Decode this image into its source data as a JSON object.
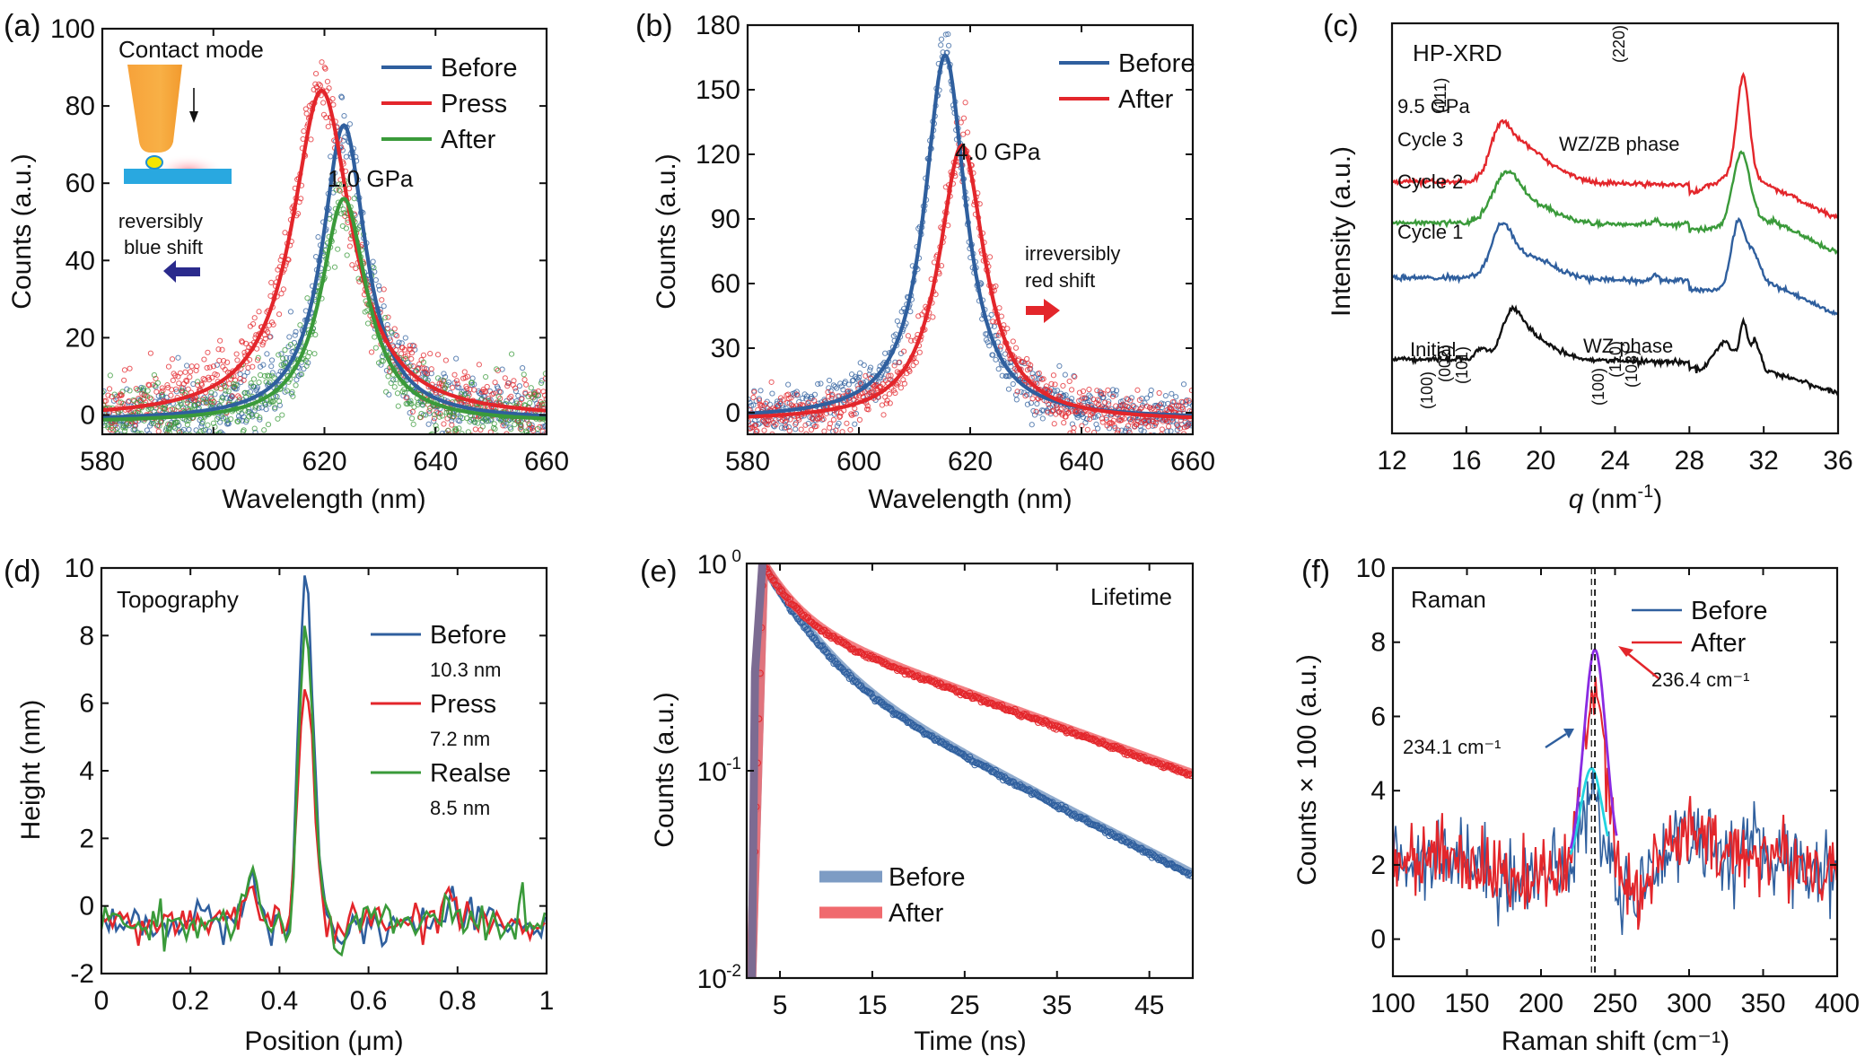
{
  "figure": {
    "panels": [
      "(a)",
      "(b)",
      "(c)",
      "(d)",
      "(e)",
      "(f)"
    ]
  },
  "chart_data": [
    {
      "id": "a",
      "panel_label": "(a)",
      "type": "scatter",
      "title": "",
      "xlabel": "Wavelength (nm)",
      "ylabel": "Counts (a.u.)",
      "xlim": [
        580,
        660
      ],
      "ylim": [
        -5,
        100
      ],
      "xticks": [
        580,
        600,
        620,
        640,
        660
      ],
      "yticks": [
        0,
        20,
        40,
        60,
        80,
        100
      ],
      "legend_position": "top-right",
      "annotations": {
        "inset_title": "Contact mode",
        "shift_text_1": "reversibly",
        "shift_text_2": "blue shift",
        "pressure": "1.0 GPa",
        "arrow_direction": "left",
        "arrow_color": "#2a2a8c"
      },
      "series": [
        {
          "name": "Before",
          "color": "#2f5f9e",
          "fit": "lorentzian",
          "center": 623.5,
          "peak": 75,
          "fwhm": 9.5,
          "baseline": -1.5
        },
        {
          "name": "Press",
          "color": "#e3262b",
          "fit": "lorentzian",
          "center": 619.5,
          "peak": 84,
          "fwhm": 13,
          "baseline": -1.0
        },
        {
          "name": "After",
          "color": "#3a9a3a",
          "fit": "lorentzian",
          "center": 623.5,
          "peak": 56,
          "fwhm": 10,
          "baseline": -2.0
        }
      ]
    },
    {
      "id": "b",
      "panel_label": "(b)",
      "type": "scatter",
      "xlabel": "Wavelength (nm)",
      "ylabel": "Counts (a.u.)",
      "xlim": [
        580,
        660
      ],
      "ylim": [
        -10,
        180
      ],
      "xticks": [
        580,
        600,
        620,
        640,
        660
      ],
      "yticks": [
        0,
        30,
        60,
        90,
        120,
        150,
        180
      ],
      "legend_position": "top-right",
      "annotations": {
        "pressure": "4.0 GPa",
        "shift_text_1": "irreversibly",
        "shift_text_2": "red shift",
        "arrow_direction": "right",
        "arrow_color": "#e3262b"
      },
      "series": [
        {
          "name": "Before",
          "color": "#2f5f9e",
          "fit": "lorentzian",
          "center": 615.5,
          "peak": 166,
          "fwhm": 9,
          "baseline": -3
        },
        {
          "name": "After",
          "color": "#e3262b",
          "fit": "lorentzian",
          "center": 618.5,
          "peak": 124,
          "fwhm": 10,
          "baseline": -4
        }
      ]
    },
    {
      "id": "c",
      "panel_label": "(c)",
      "type": "line",
      "xlabel": "q (nm⁻¹)",
      "xlabel_italic": "q",
      "xlabel_rest": " (nm",
      "xlabel_sup": "-1",
      "xlabel_end": ")",
      "ylabel": "Intensity (a.u.)",
      "xlim": [
        12,
        36
      ],
      "xticks": [
        12,
        16,
        20,
        24,
        28,
        32,
        36
      ],
      "annotations": {
        "method": "HP-XRD",
        "pressure": "9.5 GPa",
        "phase_top": "WZ/ZB phase",
        "phase_bottom": "WZ phase",
        "hkl_top": [
          "(111)",
          "(220)"
        ],
        "hkl_bottom_left": [
          "(100)",
          "(002)",
          "(101)"
        ],
        "hkl_bottom_right": [
          "(102)",
          "(110)",
          "(103)"
        ]
      },
      "series": [
        {
          "name": "Cycle 3",
          "color": "#e3262b"
        },
        {
          "name": "Cycle 2",
          "color": "#3a9a3a"
        },
        {
          "name": "Cycle 1",
          "color": "#2f5f9e"
        },
        {
          "name": "Initial",
          "color": "#111111"
        }
      ]
    },
    {
      "id": "d",
      "panel_label": "(d)",
      "type": "line",
      "xlabel": "Position (μm)",
      "ylabel": "Height (nm)",
      "xlim": [
        0,
        1
      ],
      "ylim": [
        -2,
        10
      ],
      "xticks": [
        "0",
        "0.2",
        "0.4",
        "0.6",
        "0.8",
        "1"
      ],
      "yticks": [
        "-2",
        "0",
        "2",
        "4",
        "6",
        "8",
        "10"
      ],
      "annotations": {
        "title": "Topography"
      },
      "legend_position": "top-right",
      "series": [
        {
          "name": "Before",
          "sub": "10.3 nm",
          "color": "#2f5f9e",
          "peak": 9.4
        },
        {
          "name": "Press",
          "sub": "7.2 nm",
          "color": "#e3262b",
          "peak": 6.4
        },
        {
          "name": "Realse",
          "sub": "8.5 nm",
          "color": "#3a9a3a",
          "peak": 7.7
        }
      ]
    },
    {
      "id": "e",
      "panel_label": "(e)",
      "type": "scatter",
      "xlabel": "Time (ns)",
      "ylabel": "Counts (a.u.)",
      "yscale": "log",
      "xlim": [
        1.4,
        49.7
      ],
      "ylim": [
        0.01,
        1
      ],
      "xticks": [
        5,
        15,
        25,
        35,
        45
      ],
      "yticks": [
        {
          "base": "10",
          "exp": "0"
        },
        {
          "base": "10",
          "exp": "-1"
        },
        {
          "base": "10",
          "exp": "-2"
        }
      ],
      "annotations": {
        "title": "Lifetime"
      },
      "legend_position": "bottom-left",
      "series": [
        {
          "name": "Before",
          "color": "#2f5f9e",
          "fit_color": "#7d9cc4",
          "end_value": 0.032
        },
        {
          "name": "After",
          "color": "#e3262b",
          "fit_color": "#f06a6e",
          "end_value": 0.097
        }
      ]
    },
    {
      "id": "f",
      "panel_label": "(f)",
      "type": "line",
      "xlabel": "Raman shift (cm⁻¹)",
      "ylabel": "Counts × 100 (a.u.)",
      "xlim": [
        100,
        400
      ],
      "ylim": [
        -1,
        10
      ],
      "xticks": [
        100,
        150,
        200,
        250,
        300,
        350,
        400
      ],
      "yticks": [
        0,
        2,
        4,
        6,
        8,
        10
      ],
      "annotations": {
        "title": "Raman",
        "peak_before": "234.1 cm⁻¹",
        "peak_after": "236.4 cm⁻¹",
        "peak_before_value": 234.1,
        "peak_after_value": 236.4
      },
      "legend_position": "top-right",
      "series": [
        {
          "name": "Before",
          "color": "#2f5f9e",
          "fit_color": "#22d3e0",
          "fit_peak": 4.6
        },
        {
          "name": "After",
          "color": "#e3262b",
          "fit_color": "#8a2be2",
          "fit_peak": 7.8
        }
      ]
    }
  ]
}
